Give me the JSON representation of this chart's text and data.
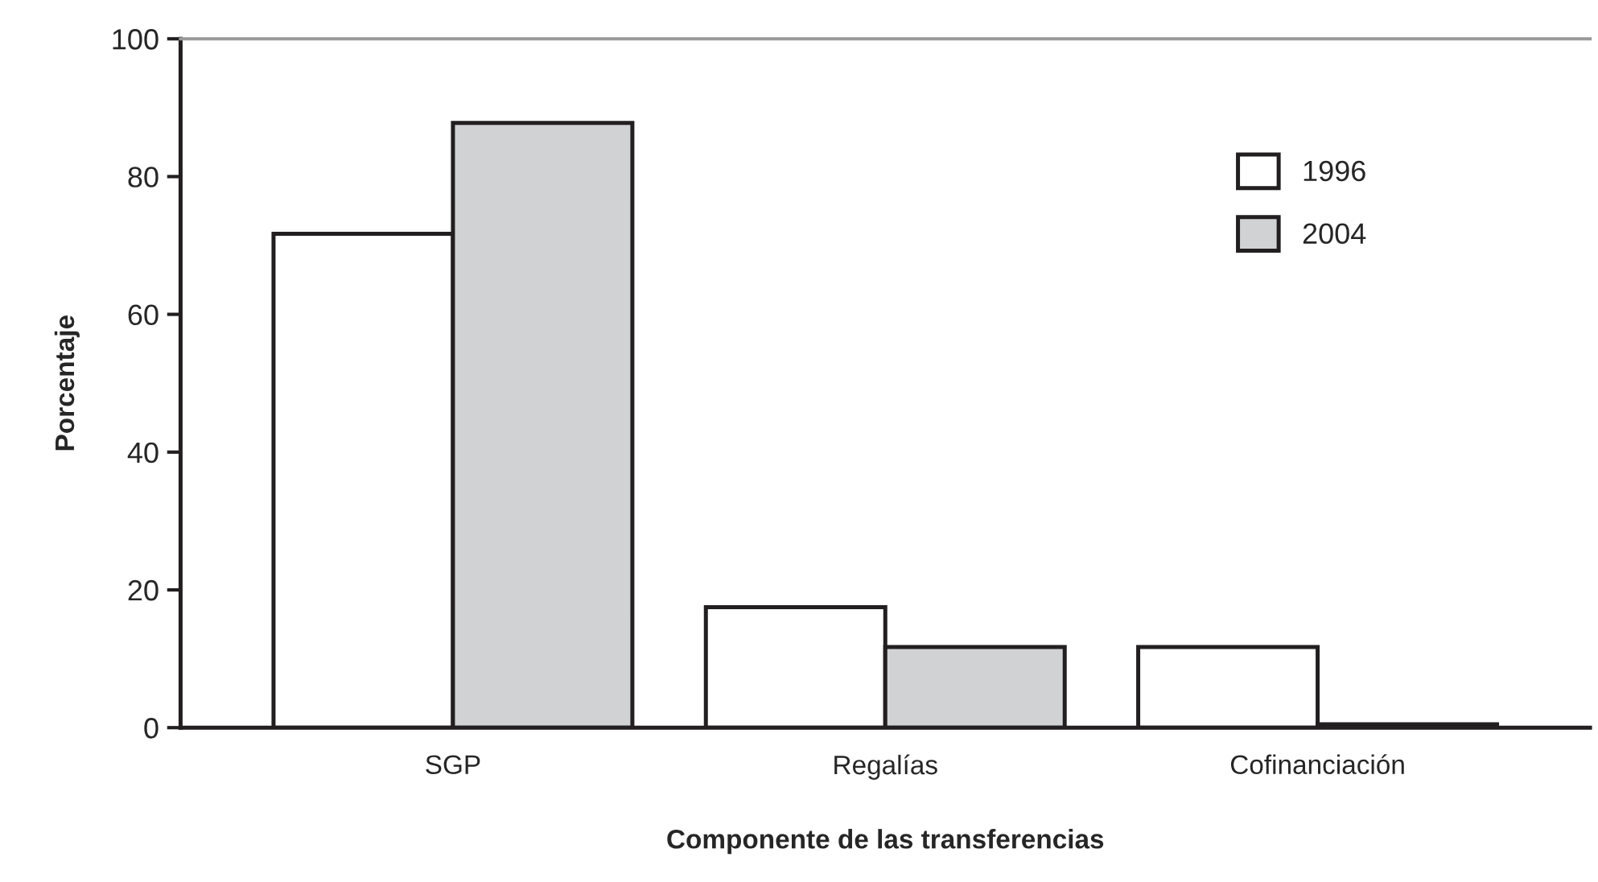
{
  "chart_data": {
    "type": "bar",
    "xlabel": "Componente de las transferencias",
    "ylabel": "Porcentaje",
    "categories": [
      "SGP",
      "Regalías",
      "Cofinanciación"
    ],
    "series": [
      {
        "name": "1996",
        "color": "#ffffff",
        "values": [
          71.7,
          17.5,
          11.7
        ]
      },
      {
        "name": "2004",
        "color": "#d1d2d4",
        "values": [
          87.8,
          11.7,
          0.5
        ]
      }
    ],
    "ylim": [
      0,
      100
    ],
    "yticks": [
      0,
      20,
      40,
      60,
      80,
      100
    ],
    "grid": false,
    "legend": "top right"
  }
}
